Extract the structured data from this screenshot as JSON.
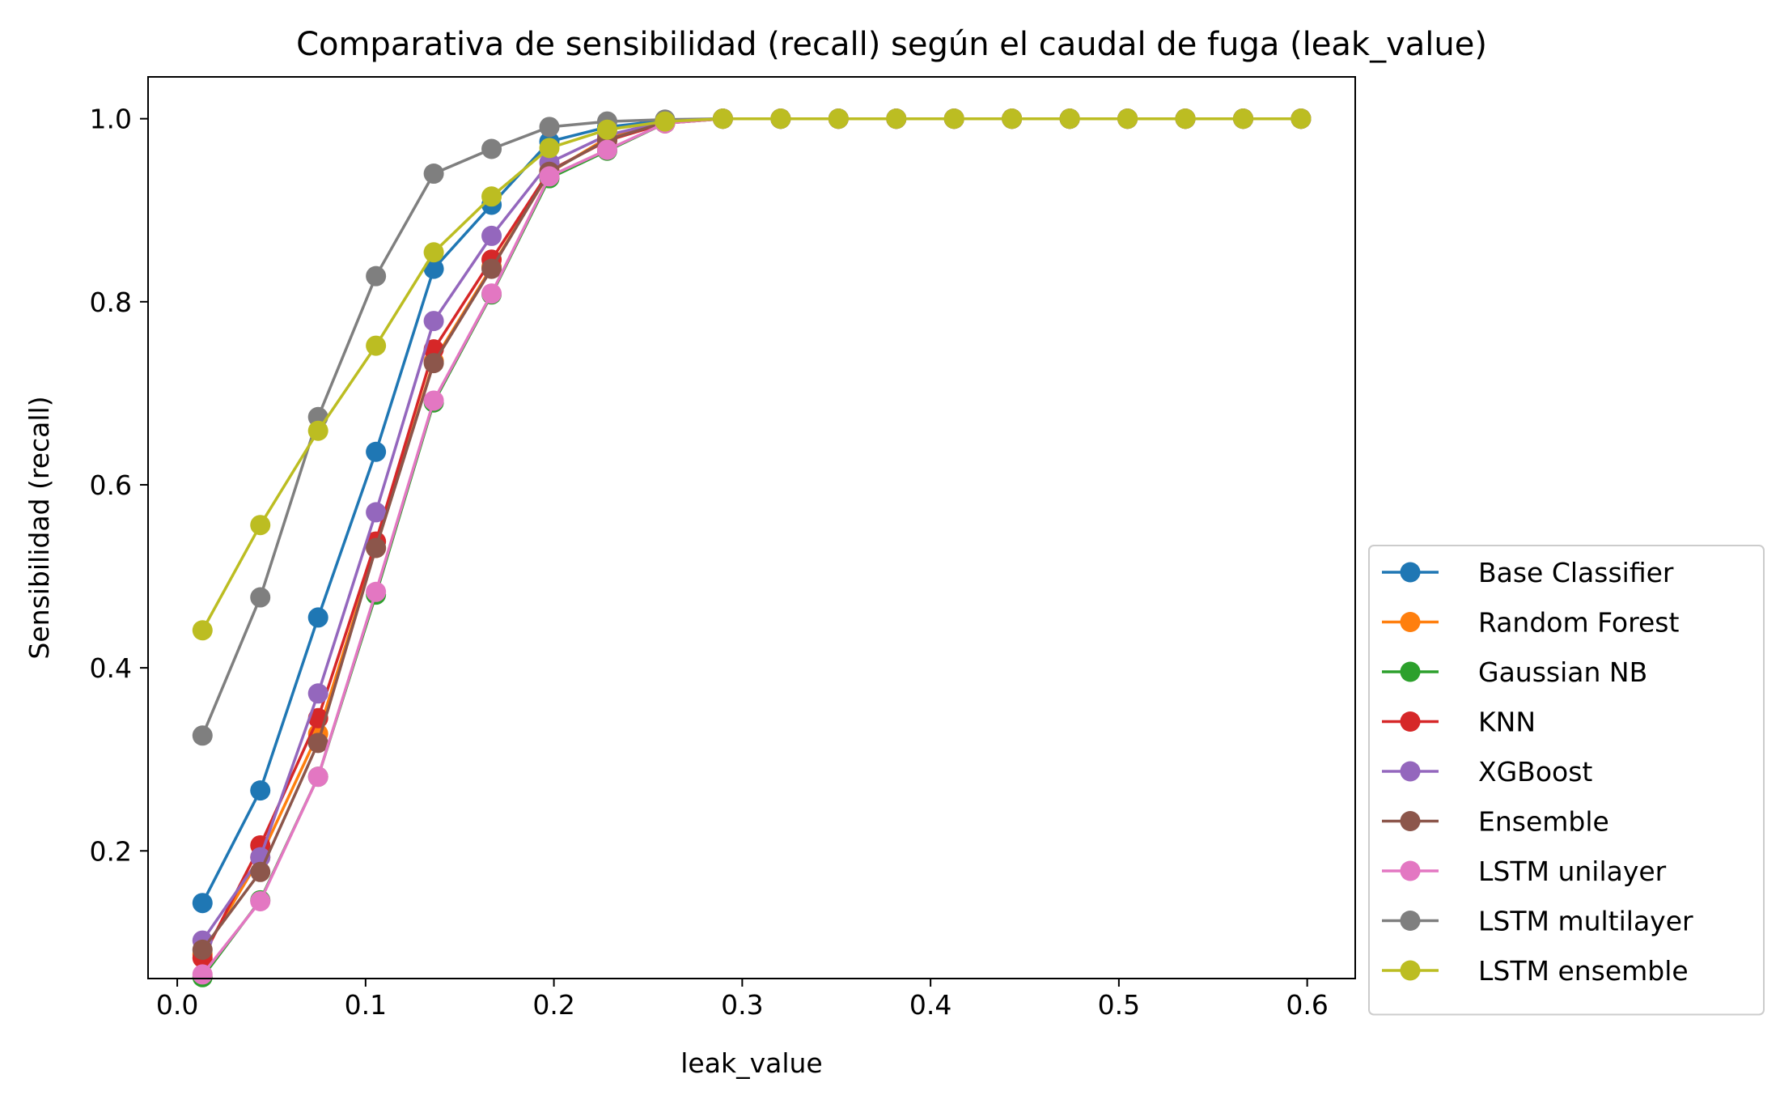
{
  "chart_data": {
    "type": "line",
    "title": "Comparativa de sensibilidad (recall) según el caudal de fuga (leak_value)",
    "xlabel": "leak_value",
    "ylabel": "Sensibilidad (recall)",
    "xlim": [
      -0.0155,
      0.6255
    ],
    "ylim": [
      0.0605,
      1.0457
    ],
    "x_ticks": [
      0.0,
      0.1,
      0.2,
      0.3,
      0.4,
      0.5,
      0.6
    ],
    "x_tick_labels": [
      "0.0",
      "0.1",
      "0.2",
      "0.3",
      "0.4",
      "0.5",
      "0.6"
    ],
    "y_ticks": [
      0.2,
      0.4,
      0.6,
      0.8,
      1.0
    ],
    "y_tick_labels": [
      "0.2",
      "0.4",
      "0.6",
      "0.8",
      "1.0"
    ],
    "grid": false,
    "legend_position": "outside-right-bottom",
    "x": [
      0.0134,
      0.0441,
      0.0748,
      0.1055,
      0.1362,
      0.1669,
      0.1976,
      0.2283,
      0.259,
      0.2897,
      0.3204,
      0.3511,
      0.3818,
      0.4125,
      0.4432,
      0.4739,
      0.5046,
      0.5353,
      0.566,
      0.5967
    ],
    "series": [
      {
        "name": "Base Classifier",
        "color": "#1f77b4",
        "values": [
          0.143,
          0.266,
          0.455,
          0.636,
          0.836,
          0.906,
          0.975,
          0.991,
          0.998,
          1.0,
          1.0,
          1.0,
          1.0,
          1.0,
          1.0,
          1.0,
          1.0,
          1.0,
          1.0,
          1.0
        ]
      },
      {
        "name": "Random Forest",
        "color": "#ff7f0e",
        "values": [
          0.087,
          0.193,
          0.328,
          0.531,
          0.735,
          0.838,
          0.941,
          0.979,
          0.996,
          1.0,
          1.0,
          1.0,
          1.0,
          1.0,
          1.0,
          1.0,
          1.0,
          1.0,
          1.0,
          1.0
        ]
      },
      {
        "name": "Gaussian NB",
        "color": "#2ca02c",
        "values": [
          0.062,
          0.146,
          0.281,
          0.48,
          0.69,
          0.808,
          0.935,
          0.965,
          0.995,
          1.0,
          1.0,
          1.0,
          1.0,
          1.0,
          1.0,
          1.0,
          1.0,
          1.0,
          1.0,
          1.0
        ]
      },
      {
        "name": "KNN",
        "color": "#d62728",
        "values": [
          0.083,
          0.206,
          0.345,
          0.538,
          0.748,
          0.846,
          0.943,
          0.976,
          0.995,
          1.0,
          1.0,
          1.0,
          1.0,
          1.0,
          1.0,
          1.0,
          1.0,
          1.0,
          1.0,
          1.0
        ]
      },
      {
        "name": "XGBoost",
        "color": "#9467bd",
        "values": [
          0.102,
          0.193,
          0.372,
          0.57,
          0.779,
          0.872,
          0.952,
          0.982,
          0.997,
          1.0,
          1.0,
          1.0,
          1.0,
          1.0,
          1.0,
          1.0,
          1.0,
          1.0,
          1.0,
          1.0
        ]
      },
      {
        "name": "Ensemble",
        "color": "#8c564b",
        "values": [
          0.092,
          0.177,
          0.318,
          0.531,
          0.733,
          0.836,
          0.942,
          0.977,
          0.996,
          1.0,
          1.0,
          1.0,
          1.0,
          1.0,
          1.0,
          1.0,
          1.0,
          1.0,
          1.0,
          1.0
        ]
      },
      {
        "name": "LSTM unilayer",
        "color": "#e377c2",
        "values": [
          0.065,
          0.145,
          0.281,
          0.483,
          0.692,
          0.809,
          0.937,
          0.966,
          0.995,
          1.0,
          1.0,
          1.0,
          1.0,
          1.0,
          1.0,
          1.0,
          1.0,
          1.0,
          1.0,
          1.0
        ]
      },
      {
        "name": "LSTM multilayer",
        "color": "#7f7f7f",
        "values": [
          0.326,
          0.477,
          0.674,
          0.828,
          0.94,
          0.967,
          0.991,
          0.997,
          0.999,
          1.0,
          1.0,
          1.0,
          1.0,
          1.0,
          1.0,
          1.0,
          1.0,
          1.0,
          1.0,
          1.0
        ]
      },
      {
        "name": "LSTM ensemble",
        "color": "#bcbd22",
        "values": [
          0.441,
          0.556,
          0.659,
          0.752,
          0.854,
          0.915,
          0.968,
          0.988,
          0.997,
          1.0,
          1.0,
          1.0,
          1.0,
          1.0,
          1.0,
          1.0,
          1.0,
          1.0,
          1.0,
          1.0
        ]
      }
    ]
  }
}
